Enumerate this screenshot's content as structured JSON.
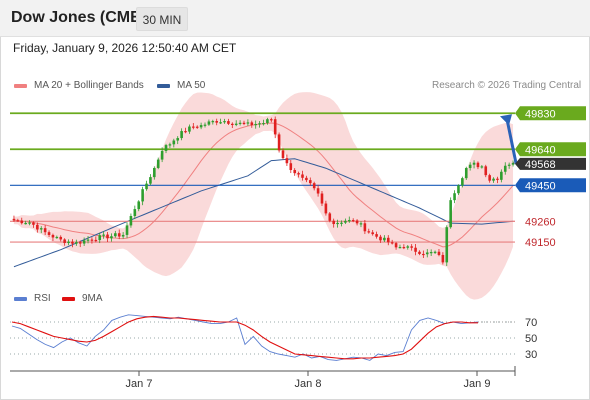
{
  "header": {
    "instrument": "Dow Jones (CME)",
    "timeframe": "30 MIN",
    "timestamp": "Friday, January 9, 2026 12:50:40 AM CET"
  },
  "legend": {
    "ma20": {
      "label": "MA 20 + Bollinger Bands",
      "color": "#f08080"
    },
    "ma50": {
      "label": "MA 50",
      "color": "#335c99"
    },
    "credit": "Research © 2026 Trading Central"
  },
  "rsi_legend": {
    "rsi": {
      "label": "RSI",
      "color": "#5b7fd1"
    },
    "ma9": {
      "label": "9MA",
      "color": "#e01010"
    }
  },
  "colors": {
    "up": "#2e9e2e",
    "down": "#e02020",
    "green_level": "#6aaa1e",
    "blue_level": "#1a5bb8",
    "red_level": "#e88080",
    "band": "#fadada",
    "price_tag": "#333333"
  },
  "chart_data": [
    {
      "type": "candlestick",
      "title": "Dow Jones (CME)",
      "interval": "30 MIN",
      "x_ticks": [
        "Jan 7",
        "Jan 8",
        "Jan 9"
      ],
      "y_range": [
        48950,
        49900
      ],
      "levels": [
        {
          "value": 49830,
          "label": "49830",
          "kind": "resistance"
        },
        {
          "value": 49640,
          "label": "49640",
          "kind": "resistance"
        },
        {
          "value": 49450,
          "label": "49450",
          "kind": "pivot"
        },
        {
          "value": 49260,
          "label": "49260",
          "kind": "support"
        },
        {
          "value": 49150,
          "label": "49150",
          "kind": "support"
        }
      ],
      "last_price": {
        "value": 49568,
        "label": "49568"
      },
      "forecast_arrow": {
        "from": 49565,
        "to": 49830
      },
      "candle_close_path": [
        [
          0,
          49265
        ],
        [
          4,
          49255
        ],
        [
          8,
          49200
        ],
        [
          12,
          49160
        ],
        [
          16,
          49145
        ],
        [
          20,
          49170
        ],
        [
          24,
          49180
        ],
        [
          28,
          49190
        ],
        [
          31,
          49330
        ],
        [
          34,
          49460
        ],
        [
          36,
          49540
        ],
        [
          38,
          49640
        ],
        [
          40,
          49670
        ],
        [
          42,
          49710
        ],
        [
          44,
          49740
        ],
        [
          46,
          49760
        ],
        [
          48,
          49765
        ],
        [
          50,
          49780
        ],
        [
          52,
          49790
        ],
        [
          54,
          49790
        ],
        [
          56,
          49780
        ],
        [
          58,
          49775
        ],
        [
          60,
          49770
        ],
        [
          62,
          49775
        ],
        [
          64,
          49780
        ],
        [
          66,
          49800
        ],
        [
          68,
          49640
        ],
        [
          70,
          49560
        ],
        [
          72,
          49520
        ],
        [
          74,
          49480
        ],
        [
          76,
          49450
        ],
        [
          78,
          49400
        ],
        [
          80,
          49300
        ],
        [
          82,
          49250
        ],
        [
          85,
          49265
        ],
        [
          88,
          49255
        ],
        [
          90,
          49220
        ],
        [
          92,
          49190
        ],
        [
          94,
          49170
        ],
        [
          96,
          49150
        ],
        [
          98,
          49120
        ],
        [
          100,
          49130
        ],
        [
          102,
          49110
        ],
        [
          104,
          49100
        ],
        [
          106,
          49090
        ],
        [
          108,
          49095
        ],
        [
          110,
          49050
        ],
        [
          111,
          49220
        ],
        [
          112,
          49380
        ],
        [
          114,
          49460
        ],
        [
          116,
          49540
        ],
        [
          118,
          49560
        ],
        [
          120,
          49550
        ],
        [
          122,
          49480
        ],
        [
          124,
          49490
        ],
        [
          126,
          49560
        ],
        [
          128,
          49568
        ]
      ],
      "ma50_path": [
        [
          0,
          49020
        ],
        [
          12,
          49110
        ],
        [
          28,
          49250
        ],
        [
          48,
          49420
        ],
        [
          60,
          49500
        ],
        [
          66,
          49580
        ],
        [
          72,
          49590
        ],
        [
          80,
          49540
        ],
        [
          88,
          49470
        ],
        [
          96,
          49400
        ],
        [
          104,
          49330
        ],
        [
          108,
          49290
        ],
        [
          112,
          49250
        ],
        [
          120,
          49245
        ],
        [
          128,
          49260
        ]
      ]
    },
    {
      "type": "line",
      "title": "RSI",
      "y_ticks": [
        70,
        50,
        30
      ],
      "y_range": [
        15,
        85
      ],
      "series": [
        {
          "name": "RSI",
          "values": [
            65,
            62,
            55,
            48,
            42,
            38,
            45,
            50,
            44,
            40,
            52,
            60,
            72,
            76,
            79,
            78,
            77,
            76,
            75,
            74,
            76,
            74,
            72,
            70,
            68,
            68,
            70,
            75,
            42,
            52,
            40,
            33,
            30,
            28,
            26,
            30,
            25,
            27,
            23,
            22,
            24,
            26,
            25,
            22,
            30,
            28,
            32,
            33,
            60,
            72,
            75,
            72,
            68,
            70,
            68,
            69,
            70
          ]
        },
        {
          "name": "9MA",
          "values": [
            70,
            68,
            64,
            60,
            56,
            52,
            50,
            48,
            46,
            45,
            47,
            52,
            58,
            64,
            70,
            74,
            76,
            77,
            76,
            75,
            75,
            74,
            73,
            72,
            71,
            70,
            70,
            70,
            66,
            60,
            52,
            45,
            40,
            35,
            30,
            29,
            28,
            27,
            26,
            25,
            24,
            24,
            25,
            25,
            26,
            27,
            28,
            30,
            36,
            46,
            56,
            64,
            68,
            70,
            70,
            69,
            69
          ]
        }
      ]
    }
  ]
}
